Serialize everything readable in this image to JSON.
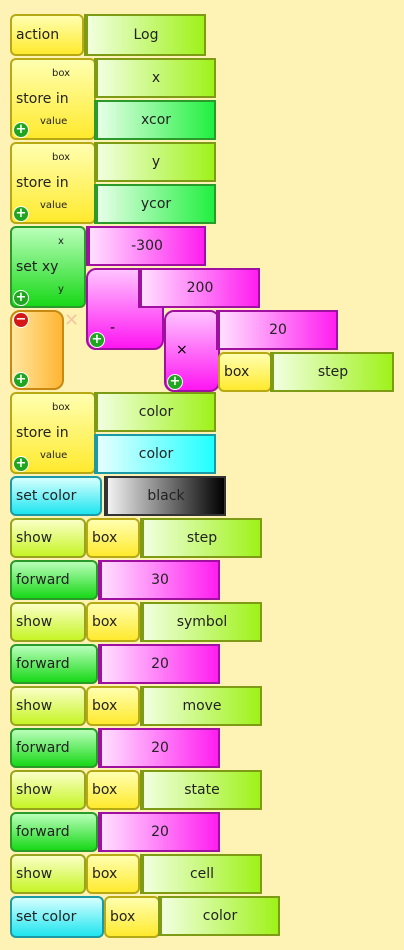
{
  "blocks": {
    "action": {
      "label": "action",
      "value": "Log"
    },
    "store1": {
      "label": "store in",
      "box_tag": "box",
      "value_tag": "value",
      "box": "x",
      "value": "xcor"
    },
    "store2": {
      "label": "store in",
      "box_tag": "box",
      "value_tag": "value",
      "box": "y",
      "value": "ycor"
    },
    "setxy": {
      "label": "set xy",
      "x_tag": "x",
      "y_tag": "y",
      "x": "-300",
      "a": "200",
      "minus": "-",
      "times": "×",
      "b": "20",
      "box_tag": "box",
      "box": "step"
    },
    "store3": {
      "label": "store in",
      "box_tag": "box",
      "value_tag": "value",
      "box": "color",
      "value": "color"
    },
    "setcolor1": {
      "label": "set color",
      "value": "black"
    },
    "seq": [
      {
        "kind": "show",
        "label": "show",
        "tag": "box",
        "value": "step"
      },
      {
        "kind": "forward",
        "label": "forward",
        "value": "30"
      },
      {
        "kind": "show",
        "label": "show",
        "tag": "box",
        "value": "symbol"
      },
      {
        "kind": "forward",
        "label": "forward",
        "value": "20"
      },
      {
        "kind": "show",
        "label": "show",
        "tag": "box",
        "value": "move"
      },
      {
        "kind": "forward",
        "label": "forward",
        "value": "20"
      },
      {
        "kind": "show",
        "label": "show",
        "tag": "box",
        "value": "state"
      },
      {
        "kind": "forward",
        "label": "forward",
        "value": "20"
      },
      {
        "kind": "show",
        "label": "show",
        "tag": "box",
        "value": "cell"
      }
    ],
    "setcolor2": {
      "label": "set color",
      "tag": "box",
      "value": "color"
    }
  },
  "icons": {
    "plus": "+",
    "minus": "−"
  }
}
